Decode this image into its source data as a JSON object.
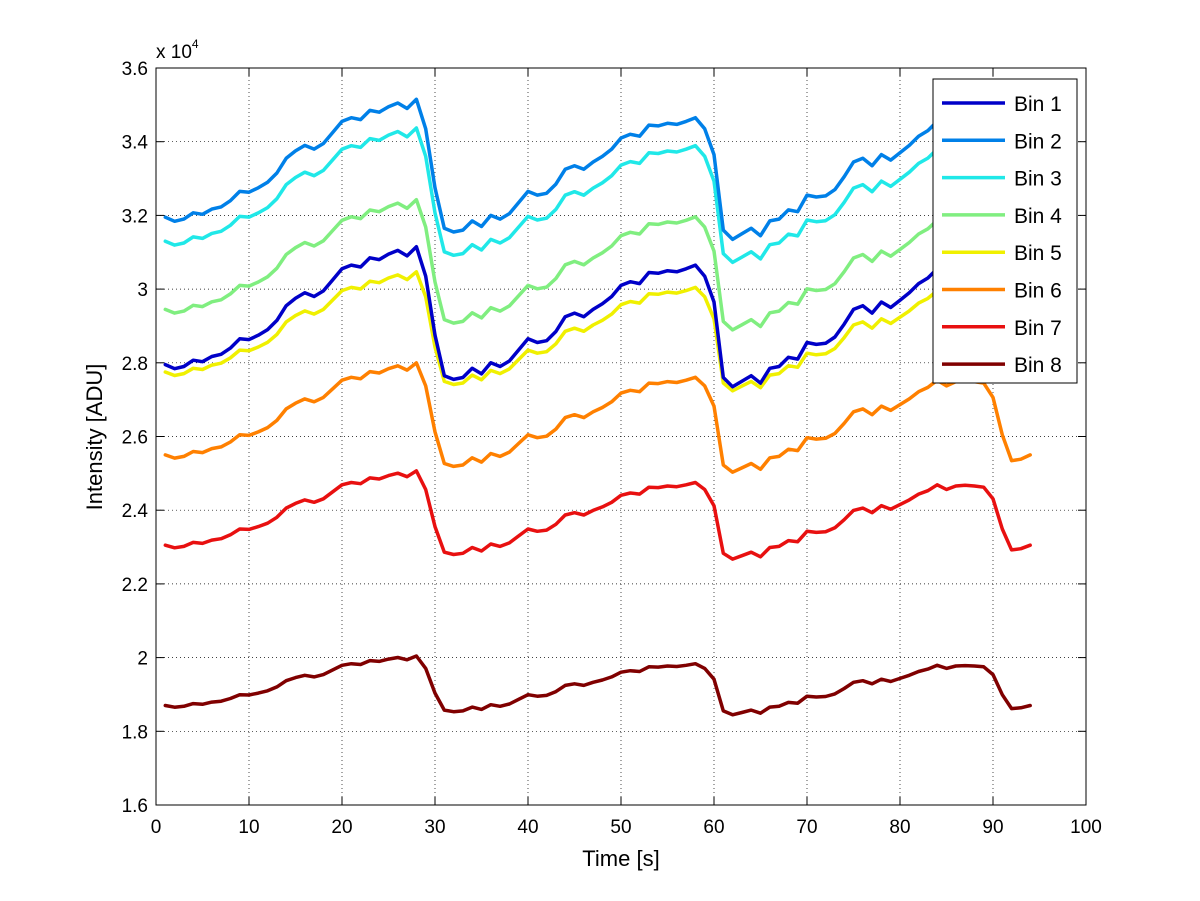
{
  "chart_data": {
    "type": "line",
    "title": "",
    "xlabel": "Time [s]",
    "ylabel": "Intensity [ADU]",
    "xlim": [
      0,
      100
    ],
    "ylim": [
      1.6,
      3.6
    ],
    "y_scale_label": "x 10",
    "y_scale_exponent": "4",
    "x_ticks": [
      "0",
      "10",
      "20",
      "30",
      "40",
      "50",
      "60",
      "70",
      "80",
      "90",
      "100"
    ],
    "y_ticks": [
      "1.6",
      "1.8",
      "2",
      "2.2",
      "2.4",
      "2.6",
      "2.8",
      "3",
      "3.2",
      "3.4",
      "3.6"
    ],
    "grid": true,
    "legend_position": "top-right",
    "x": [
      1,
      2,
      3,
      4,
      5,
      6,
      7,
      8,
      9,
      10,
      11,
      12,
      13,
      14,
      15,
      16,
      17,
      18,
      19,
      20,
      21,
      22,
      23,
      24,
      25,
      26,
      27,
      28,
      29,
      30,
      31,
      32,
      33,
      34,
      35,
      36,
      37,
      38,
      39,
      40,
      41,
      42,
      43,
      44,
      45,
      46,
      47,
      48,
      49,
      50,
      51,
      52,
      53,
      54,
      55,
      56,
      57,
      58,
      59,
      60,
      61,
      62,
      63,
      64,
      65,
      66,
      67,
      68,
      69,
      70,
      71,
      72,
      73,
      74,
      75,
      76,
      77,
      78,
      79,
      80,
      81,
      82,
      83,
      84,
      85,
      86,
      87,
      88,
      89,
      90,
      91,
      92,
      93,
      94
    ],
    "base_profile": [
      0.0,
      -0.011,
      -0.005,
      0.012,
      0.008,
      0.022,
      0.028,
      0.045,
      0.07,
      0.068,
      0.08,
      0.095,
      0.12,
      0.16,
      0.18,
      0.195,
      0.185,
      0.2,
      0.23,
      0.26,
      0.27,
      0.265,
      0.29,
      0.285,
      0.3,
      0.31,
      0.295,
      0.32,
      0.24,
      0.08,
      -0.03,
      -0.04,
      -0.035,
      -0.01,
      -0.025,
      0.005,
      -0.005,
      0.01,
      0.04,
      0.07,
      0.06,
      0.065,
      0.09,
      0.13,
      0.14,
      0.13,
      0.15,
      0.165,
      0.185,
      0.215,
      0.225,
      0.22,
      0.25,
      0.248,
      0.255,
      0.252,
      0.26,
      0.27,
      0.24,
      0.17,
      -0.035,
      -0.06,
      -0.045,
      -0.03,
      -0.05,
      -0.01,
      -0.005,
      0.02,
      0.015,
      0.06,
      0.055,
      0.058,
      0.075,
      0.11,
      0.15,
      0.16,
      0.14,
      0.17,
      0.155,
      0.175,
      0.195,
      0.22,
      0.235,
      0.26,
      0.24,
      0.255,
      0.258,
      0.255,
      0.25,
      0.2,
      0.07,
      -0.02,
      -0.015,
      0.0
    ],
    "series": [
      {
        "name": "Bin 1",
        "color": "#0000c8",
        "offset": 2.795,
        "scale": 1.0
      },
      {
        "name": "Bin 2",
        "color": "#0080e8",
        "offset": 3.195,
        "scale": 1.0
      },
      {
        "name": "Bin 3",
        "color": "#20e8e8",
        "offset": 3.13,
        "scale": 0.96
      },
      {
        "name": "Bin 4",
        "color": "#80ee80",
        "offset": 2.945,
        "scale": 0.93
      },
      {
        "name": "Bin 5",
        "color": "#f0f000",
        "offset": 2.775,
        "scale": 0.85
      },
      {
        "name": "Bin 6",
        "color": "#ff8000",
        "offset": 2.55,
        "scale": 0.78
      },
      {
        "name": "Bin 7",
        "color": "#e81010",
        "offset": 2.305,
        "scale": 0.63
      },
      {
        "name": "Bin 8",
        "color": "#800000",
        "offset": 1.87,
        "scale": 0.42
      }
    ]
  }
}
